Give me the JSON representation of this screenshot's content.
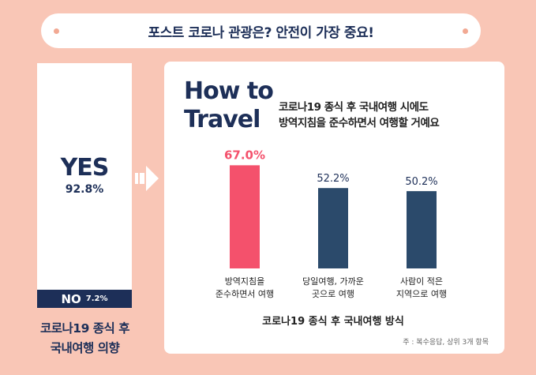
{
  "banner": {
    "title": "포스트 코로나 관광은? 안전이 가장 중요!"
  },
  "left_panel": {
    "yes_label": "YES",
    "yes_value": "92.8%",
    "no_label": "NO",
    "no_value": "7.2%",
    "caption_line1": "코로나19 종식 후",
    "caption_line2": "국내여행 의향"
  },
  "right_panel": {
    "title_line1": "How to",
    "title_line2": "Travel",
    "subtitle_line1": "코로나19 종식 후 국내여행 시에도",
    "subtitle_line2": "방역지침을 준수하면서 여행할 거예요",
    "footnote": "주 : 복수응답, 상위 3개 항목"
  },
  "chart_data": {
    "type": "bar",
    "title": "",
    "xlabel": "코로나19 종식 후 국내여행 방식",
    "ylabel": "",
    "categories": [
      "방역지침을 준수하면서 여행",
      "당일여행, 가까운 곳으로 여행",
      "사람이 적은 지역으로 여행"
    ],
    "category_lines": [
      [
        "방역지침을",
        "준수하면서 여행"
      ],
      [
        "당일여행, 가까운",
        "곳으로 여행"
      ],
      [
        "사람이 적은",
        "지역으로 여행"
      ]
    ],
    "values": [
      67.0,
      52.2,
      50.2
    ],
    "value_labels": [
      "67.0%",
      "52.2%",
      "50.2%"
    ],
    "unit": "%",
    "highlight_color": "#f4516c",
    "bar_color": "#2b4a6b",
    "grid": false
  },
  "colors": {
    "background": "#f9c6b6",
    "navy": "#1d2f58"
  }
}
